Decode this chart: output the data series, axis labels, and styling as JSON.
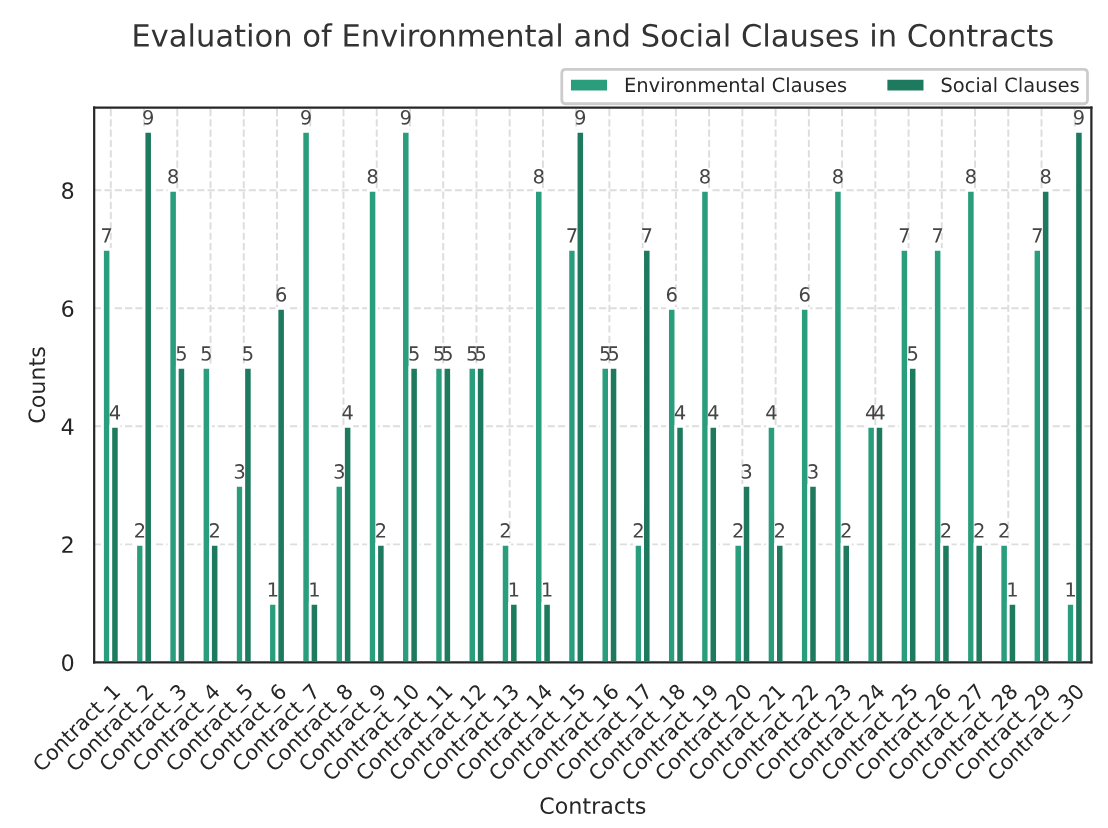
{
  "chart_data": {
    "type": "bar",
    "title": "Evaluation of Environmental and Social Clauses in Contracts",
    "xlabel": "Contracts",
    "ylabel": "Counts",
    "categories": [
      "Contract_1",
      "Contract_2",
      "Contract_3",
      "Contract_4",
      "Contract_5",
      "Contract_6",
      "Contract_7",
      "Contract_8",
      "Contract_9",
      "Contract_10",
      "Contract_11",
      "Contract_12",
      "Contract_13",
      "Contract_14",
      "Contract_15",
      "Contract_16",
      "Contract_17",
      "Contract_18",
      "Contract_19",
      "Contract_20",
      "Contract_21",
      "Contract_22",
      "Contract_23",
      "Contract_24",
      "Contract_25",
      "Contract_26",
      "Contract_27",
      "Contract_28",
      "Contract_29",
      "Contract_30"
    ],
    "series": [
      {
        "name": "Environmental Clauses",
        "color": "#2a9d7c",
        "values": [
          7,
          2,
          8,
          5,
          3,
          1,
          9,
          3,
          8,
          9,
          5,
          5,
          2,
          8,
          7,
          5,
          2,
          6,
          8,
          2,
          4,
          6,
          8,
          4,
          7,
          7,
          8,
          2,
          7,
          1
        ]
      },
      {
        "name": "Social Clauses",
        "color": "#1e7a5e",
        "values": [
          4,
          9,
          5,
          2,
          5,
          6,
          1,
          4,
          2,
          5,
          5,
          5,
          1,
          1,
          9,
          5,
          7,
          4,
          4,
          3,
          2,
          3,
          2,
          4,
          5,
          2,
          2,
          1,
          8,
          9
        ]
      }
    ],
    "ylim": [
      0,
      9.4
    ],
    "yticks": [
      0,
      2,
      4,
      6,
      8
    ],
    "grid": true,
    "legend": "top right",
    "data_labels": true
  }
}
